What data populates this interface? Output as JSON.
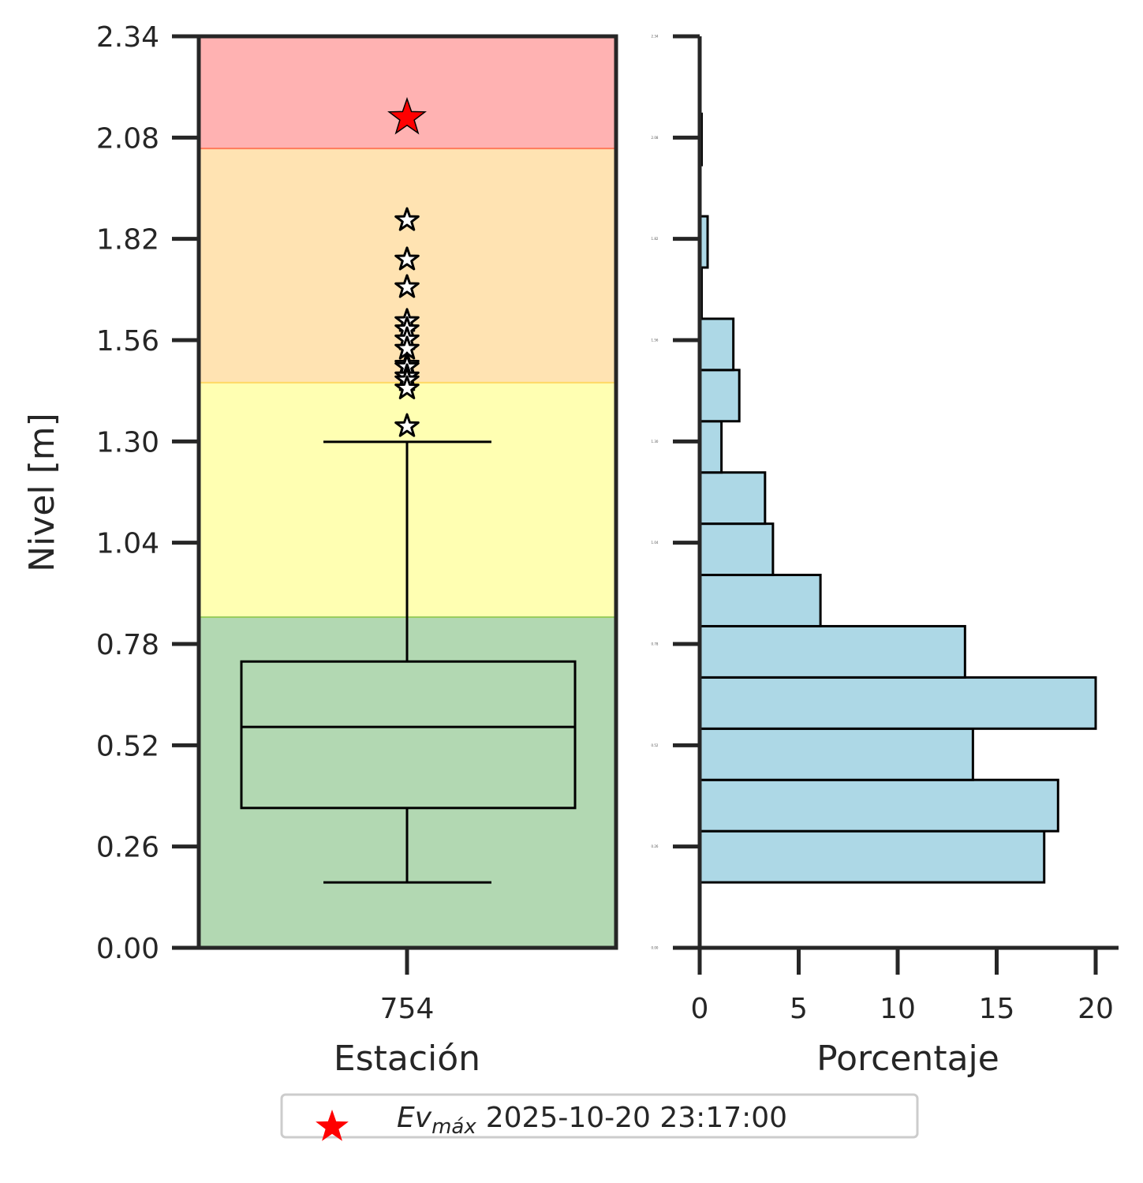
{
  "chart_data": [
    {
      "type": "box",
      "xlabel": "Estación",
      "ylabel": "Nivel [m]",
      "categories": [
        "754"
      ],
      "ylim": [
        0,
        2.34
      ],
      "yticks": [
        "0.00",
        "0.26",
        "0.52",
        "0.78",
        "1.04",
        "1.30",
        "1.56",
        "1.82",
        "2.08",
        "2.34"
      ],
      "bands": [
        {
          "from": 0,
          "to": 0.851,
          "color": "#b2d8b2",
          "line": "#9acd60"
        },
        {
          "from": 0.851,
          "to": 1.453,
          "color": "#ffffb2",
          "line": "#ffd966"
        },
        {
          "from": 1.453,
          "to": 2.054,
          "color": "#ffe3b2",
          "line": "#ff7a59"
        },
        {
          "from": 2.054,
          "to": 2.34,
          "color": "#ffb2b2"
        }
      ],
      "box": {
        "whisker_low": 0.168,
        "q1": 0.359,
        "median": 0.567,
        "q3": 0.735,
        "whisker_high": 1.299
      },
      "outliers": [
        1.872,
        1.771,
        1.7,
        1.613,
        1.592,
        1.566,
        1.542,
        1.501,
        1.495,
        1.471,
        1.461,
        1.44,
        1.343
      ],
      "max_event": {
        "value": 2.137,
        "color": "#ff0000"
      }
    },
    {
      "type": "histogram",
      "orientation": "horizontal",
      "xlabel": "Porcentaje",
      "xlim": [
        0,
        21
      ],
      "xticks": [
        "0",
        "5",
        "10",
        "15",
        "20"
      ],
      "yticks": [
        "0.00",
        "0.26",
        "0.52",
        "0.78",
        "1.04",
        "1.30",
        "1.56",
        "1.82",
        "2.08",
        "2.34"
      ],
      "bin_range": [
        0.168,
        2.141
      ],
      "values": [
        17.4,
        18.1,
        13.8,
        20.0,
        13.4,
        6.1,
        3.7,
        3.3,
        1.1,
        2.0,
        1.7,
        0.1,
        0.4,
        0.0,
        0.1
      ],
      "color": "#add8e6"
    }
  ],
  "legend": {
    "label_main": "Ev",
    "label_sub": "máx",
    "date": "2025-10-20 23:17:00",
    "placement": "bottom-center"
  }
}
